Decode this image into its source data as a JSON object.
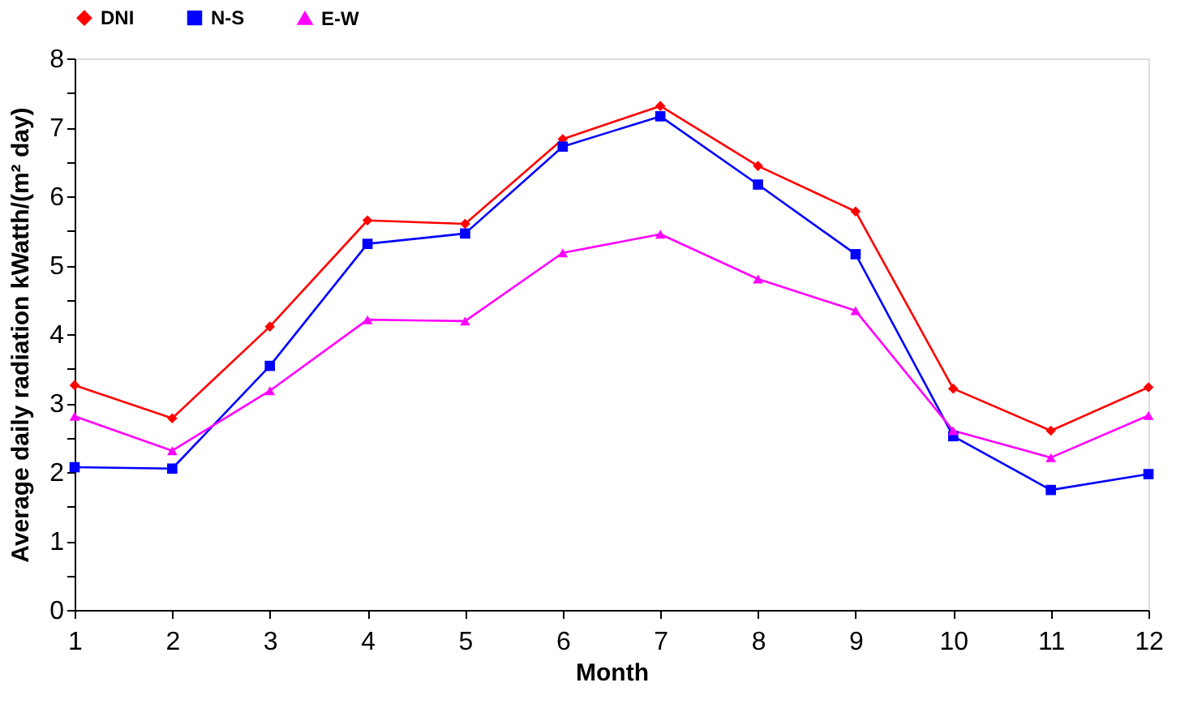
{
  "chart_data": {
    "type": "line",
    "xlabel": "Month",
    "ylabel": "Average daily radiation   kWatth/(m² day)",
    "x": [
      1,
      2,
      3,
      4,
      5,
      6,
      7,
      8,
      9,
      10,
      11,
      12
    ],
    "xlim": [
      1,
      12
    ],
    "xticks": [
      1,
      2,
      3,
      4,
      5,
      6,
      7,
      8,
      9,
      10,
      11,
      12
    ],
    "ylim": [
      0,
      8
    ],
    "yticks": [
      0,
      {
        "value": 0.5,
        "label": null
      },
      1,
      {
        "value": 1.5,
        "label": null
      },
      2,
      {
        "value": 2.5,
        "label": null
      },
      3,
      {
        "value": 3.5,
        "label": null
      },
      4,
      {
        "value": 4.5,
        "label": null
      },
      5,
      {
        "value": 5.5,
        "label": null
      },
      6,
      {
        "value": 6.5,
        "label": null
      },
      7,
      {
        "value": 7.5,
        "label": null
      },
      8
    ],
    "grid": false,
    "legend": "top",
    "line_style": "solid",
    "series": [
      {
        "name": "DNI",
        "color": "#ff0000",
        "marker": "diamond",
        "values": [
          3.26,
          2.78,
          4.11,
          5.65,
          5.6,
          6.83,
          7.31,
          6.44,
          5.78,
          3.21,
          2.6,
          3.23
        ]
      },
      {
        "name": "N-S",
        "color": "#0000ff",
        "marker": "square",
        "values": [
          2.07,
          2.05,
          3.54,
          5.31,
          5.46,
          6.72,
          7.16,
          6.17,
          5.16,
          2.52,
          1.74,
          1.97
        ]
      },
      {
        "name": "E-W",
        "color": "#ff00ff",
        "marker": "triangle",
        "values": [
          2.81,
          2.31,
          3.18,
          4.21,
          4.19,
          5.18,
          5.45,
          4.8,
          4.34,
          2.6,
          2.21,
          2.82
        ]
      }
    ]
  }
}
